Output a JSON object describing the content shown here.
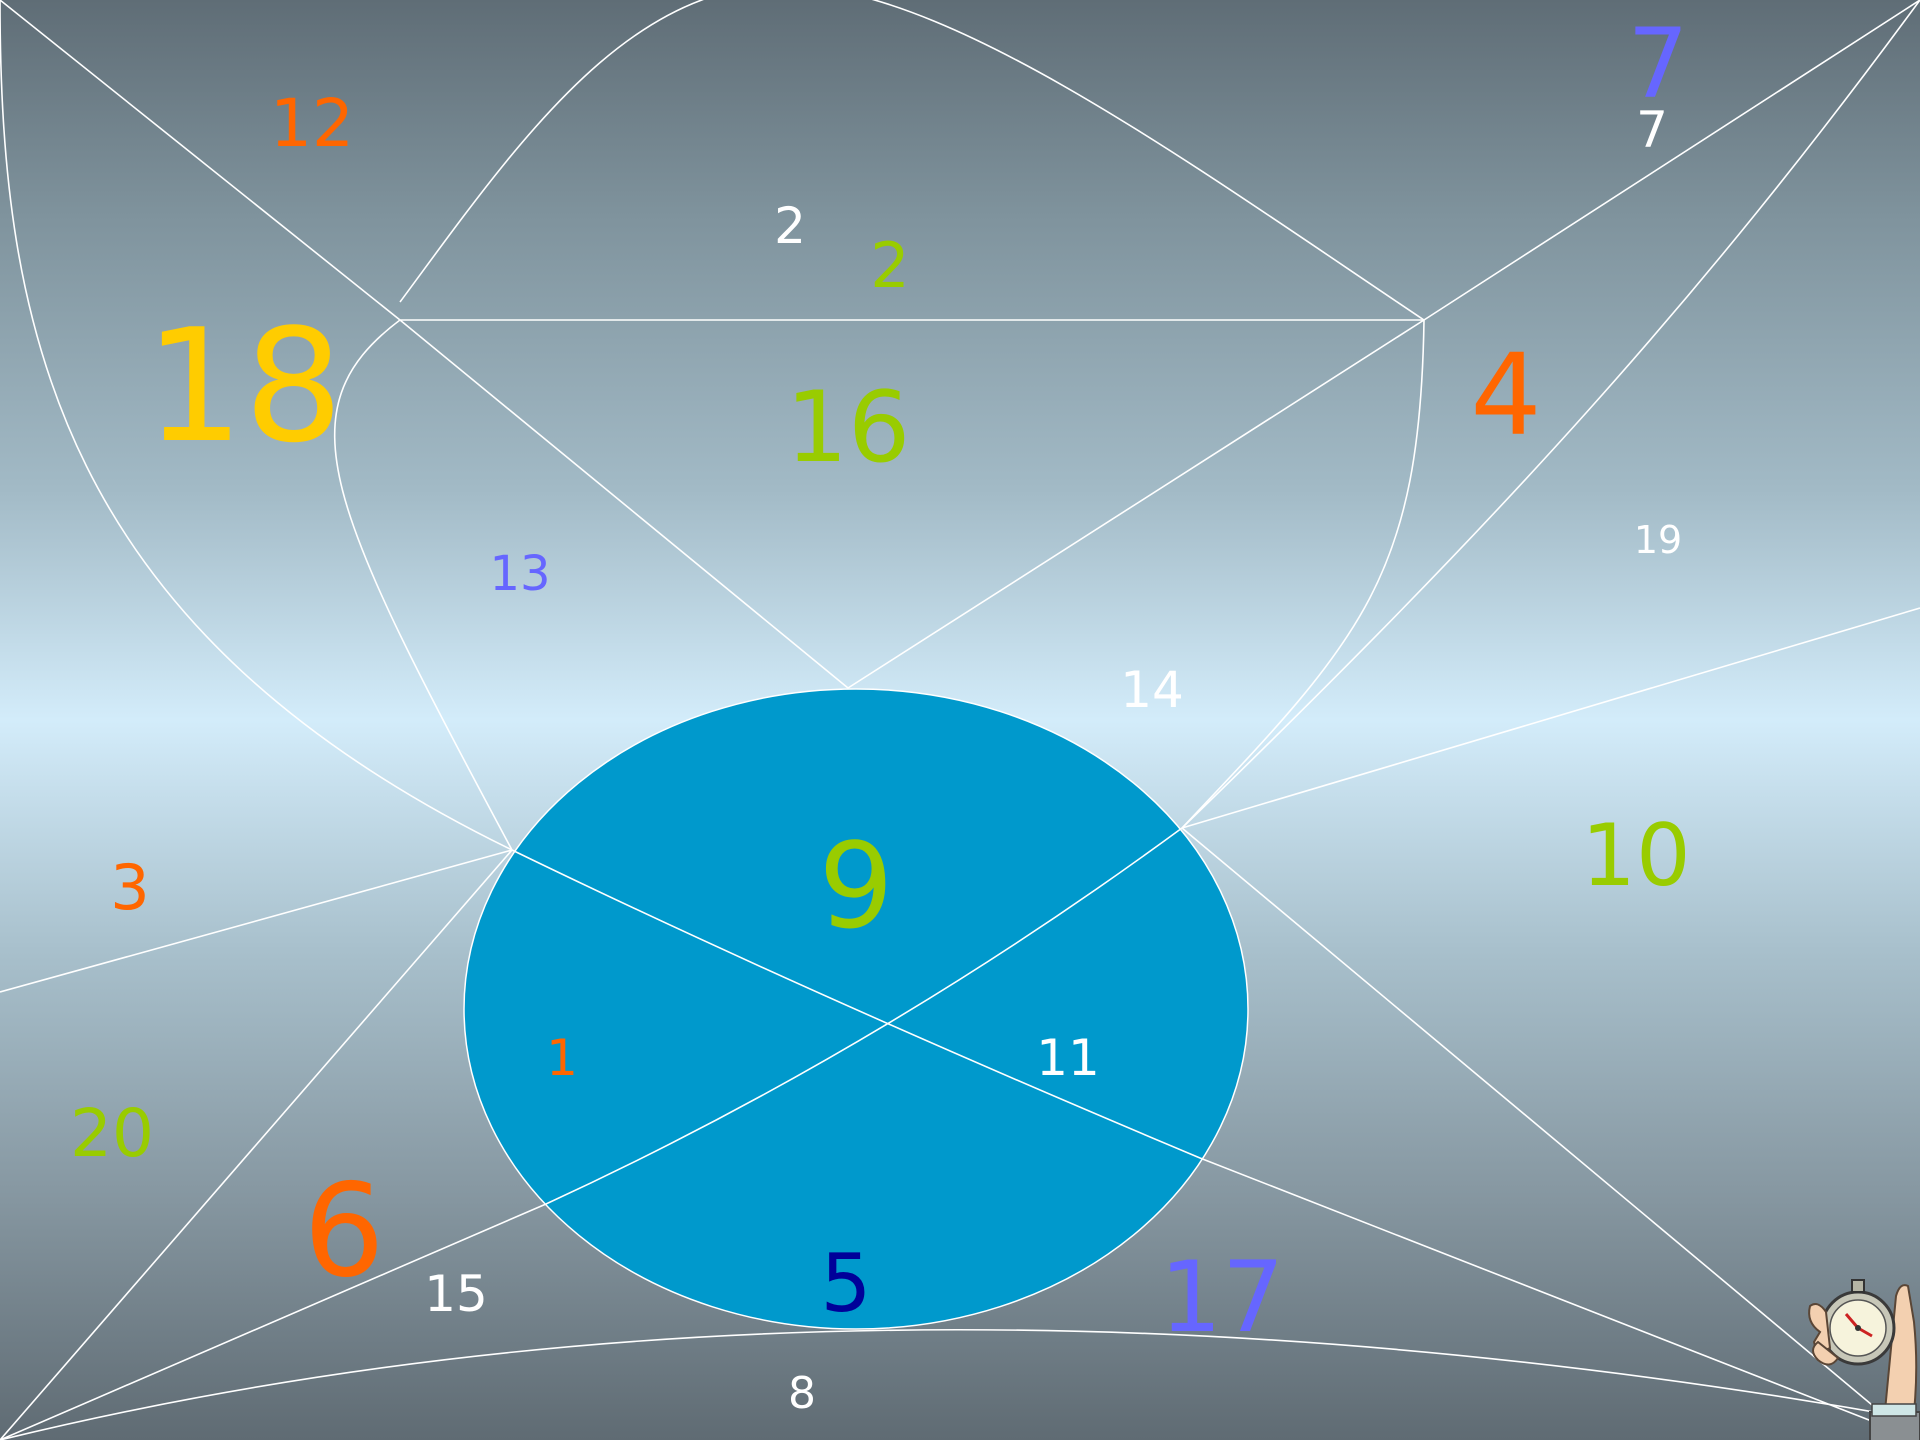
{
  "colors": {
    "orange": "#ff6600",
    "yellow": "#ffcc00",
    "green": "#99cc00",
    "blue": "#6666ff",
    "navy": "#000099",
    "white": "#ffffff",
    "ellipse_fill": "#0099cc",
    "line": "#ffffff"
  },
  "numbers": [
    {
      "text": "12",
      "color": "orange"
    },
    {
      "text": "7",
      "color": "blue"
    },
    {
      "text": "7",
      "color": "white"
    },
    {
      "text": "2",
      "color": "white"
    },
    {
      "text": "2",
      "color": "green"
    },
    {
      "text": "18",
      "color": "yellow"
    },
    {
      "text": "16",
      "color": "green"
    },
    {
      "text": "4",
      "color": "orange"
    },
    {
      "text": "13",
      "color": "blue"
    },
    {
      "text": "19",
      "color": "white"
    },
    {
      "text": "14",
      "color": "white"
    },
    {
      "text": "9",
      "color": "green"
    },
    {
      "text": "10",
      "color": "green"
    },
    {
      "text": "3",
      "color": "orange"
    },
    {
      "text": "1",
      "color": "orange"
    },
    {
      "text": "11",
      "color": "white"
    },
    {
      "text": "20",
      "color": "green"
    },
    {
      "text": "6",
      "color": "orange"
    },
    {
      "text": "15",
      "color": "white"
    },
    {
      "text": "5",
      "color": "navy"
    },
    {
      "text": "17",
      "color": "blue"
    },
    {
      "text": "8",
      "color": "white"
    }
  ],
  "icons": {
    "stopwatch": "stopwatch-in-hand-icon"
  }
}
